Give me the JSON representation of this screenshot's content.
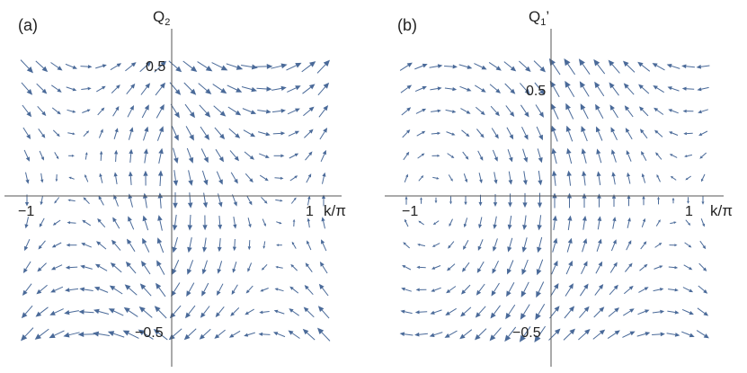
{
  "chart_data": [
    {
      "type": "vector_field",
      "panel_label": "(a)",
      "ylabel": "Q",
      "ylabel_sub": "2",
      "ylabel_suffix": "",
      "xlabel": "k/π",
      "xlim": [
        -1.1,
        1.05
      ],
      "ylim": [
        -0.6,
        0.6
      ],
      "x_ticks": [
        {
          "value": -1,
          "label": "−1"
        },
        {
          "value": 1,
          "label": "1"
        }
      ],
      "y_ticks": [
        {
          "value": 0.5,
          "label": "0.5"
        },
        {
          "value": -0.5,
          "label": "−0.5"
        }
      ],
      "grid": false,
      "arrow_color": "#4a6a99",
      "field": "a",
      "grid_x_count": 21,
      "grid_y_count": 13
    },
    {
      "type": "vector_field",
      "panel_label": "(b)",
      "ylabel": "Q",
      "ylabel_sub": "1",
      "ylabel_suffix": "’",
      "xlabel": "k/π",
      "xlim": [
        -1.1,
        1.05
      ],
      "ylim": [
        -0.6,
        0.6
      ],
      "x_ticks": [
        {
          "value": -1,
          "label": "−1"
        },
        {
          "value": 1,
          "label": "1"
        }
      ],
      "y_ticks": [
        {
          "value": 0.5,
          "label": "0.5"
        },
        {
          "value": -0.5,
          "label": "−0.5"
        }
      ],
      "grid": false,
      "arrow_color": "#4a6a99",
      "field": "b",
      "grid_x_count": 21,
      "grid_y_count": 13
    }
  ]
}
